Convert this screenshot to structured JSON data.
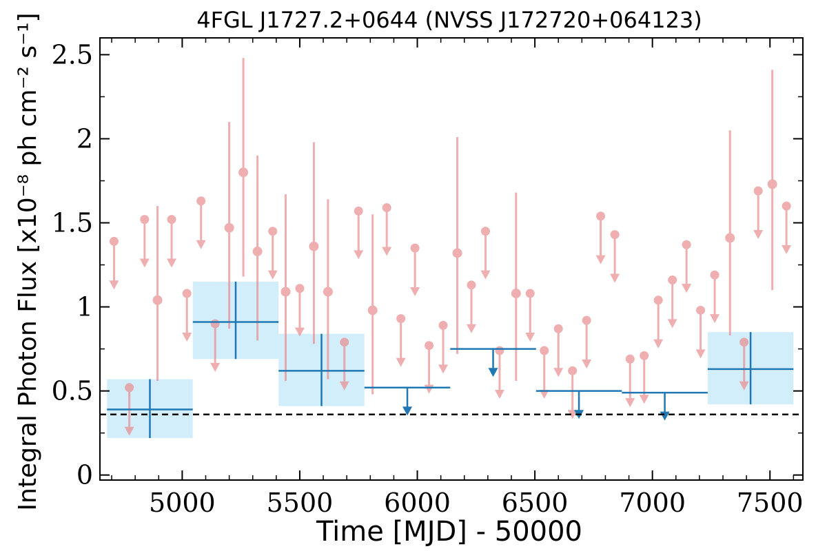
{
  "chart_data": {
    "type": "scatter",
    "title": "4FGL J1727.2+0644 (NVSS J172720+064123)",
    "xlabel": "Time [MJD] - 50000",
    "ylabel": "Integral Photon Flux [x10⁻⁸ ph cm⁻² s⁻¹]",
    "xlim": [
      4650,
      7640
    ],
    "ylim": [
      -0.03,
      2.6
    ],
    "x_ticks": [
      5000,
      5500,
      6000,
      6500,
      7000,
      7500
    ],
    "y_ticks": [
      0,
      0.5,
      1,
      1.5,
      2,
      2.5
    ],
    "x_tick_labels": [
      "5000",
      "5500",
      "6000",
      "6500",
      "7000",
      "7500"
    ],
    "y_tick_labels": [
      "0",
      "0.5",
      "1",
      "1.5",
      "2",
      "2.5"
    ],
    "grid": false,
    "reference_line": {
      "y": 0.36,
      "style": "dashed"
    },
    "colors": {
      "short_bin": "#e8888a",
      "long_bin": "#1f77b4",
      "long_bin_fill": "#d3eefb",
      "reference": "#000000"
    },
    "series": [
      {
        "bin_width_days": 60,
        "detections": [
          {
            "x": 4895,
            "y": 1.04,
            "err_low": 0.48,
            "err_high": 0.56
          },
          {
            "x": 5200,
            "y": 1.47,
            "err_low": 0.6,
            "err_high": 0.63
          },
          {
            "x": 5260,
            "y": 1.8,
            "err_low": 0.62,
            "err_high": 0.68
          },
          {
            "x": 5320,
            "y": 1.33,
            "err_low": 0.53,
            "err_high": 0.57
          },
          {
            "x": 5440,
            "y": 1.09,
            "err_low": 0.53,
            "err_high": 0.58
          },
          {
            "x": 5560,
            "y": 1.36,
            "err_low": 0.58,
            "err_high": 0.62
          },
          {
            "x": 5620,
            "y": 1.09,
            "err_low": 0.52,
            "err_high": 0.55
          },
          {
            "x": 5810,
            "y": 0.98,
            "err_low": 0.5,
            "err_high": 0.57
          },
          {
            "x": 6170,
            "y": 1.32,
            "err_low": 0.6,
            "err_high": 0.69
          },
          {
            "x": 6420,
            "y": 1.08,
            "err_low": 0.52,
            "err_high": 0.6
          },
          {
            "x": 7330,
            "y": 1.41,
            "err_low": 0.58,
            "err_high": 0.64
          },
          {
            "x": 7510,
            "y": 1.73,
            "err_low": 0.63,
            "err_high": 0.68
          }
        ],
        "upper_limits": [
          {
            "x": 4710,
            "y": 1.39
          },
          {
            "x": 4775,
            "y": 0.52
          },
          {
            "x": 4840,
            "y": 1.52
          },
          {
            "x": 4955,
            "y": 1.52
          },
          {
            "x": 5020,
            "y": 1.08
          },
          {
            "x": 5080,
            "y": 1.63
          },
          {
            "x": 5140,
            "y": 0.9
          },
          {
            "x": 5385,
            "y": 1.45
          },
          {
            "x": 5500,
            "y": 1.11
          },
          {
            "x": 5690,
            "y": 0.79
          },
          {
            "x": 5750,
            "y": 1.57
          },
          {
            "x": 5870,
            "y": 1.59
          },
          {
            "x": 5930,
            "y": 0.93
          },
          {
            "x": 5990,
            "y": 1.35
          },
          {
            "x": 6050,
            "y": 0.77
          },
          {
            "x": 6110,
            "y": 0.89
          },
          {
            "x": 6230,
            "y": 1.13
          },
          {
            "x": 6290,
            "y": 1.45
          },
          {
            "x": 6350,
            "y": 0.74
          },
          {
            "x": 6480,
            "y": 1.08
          },
          {
            "x": 6540,
            "y": 0.74
          },
          {
            "x": 6600,
            "y": 0.87
          },
          {
            "x": 6660,
            "y": 0.62
          },
          {
            "x": 6720,
            "y": 0.92
          },
          {
            "x": 6780,
            "y": 1.54
          },
          {
            "x": 6840,
            "y": 1.43
          },
          {
            "x": 6905,
            "y": 0.69
          },
          {
            "x": 6965,
            "y": 0.71
          },
          {
            "x": 7025,
            "y": 1.04
          },
          {
            "x": 7085,
            "y": 1.16
          },
          {
            "x": 7145,
            "y": 1.37
          },
          {
            "x": 7205,
            "y": 0.98
          },
          {
            "x": 7265,
            "y": 1.19
          },
          {
            "x": 7390,
            "y": 0.79
          },
          {
            "x": 7450,
            "y": 1.69
          },
          {
            "x": 7570,
            "y": 1.6
          }
        ]
      },
      {
        "bin_width_days": 365,
        "detections": [
          {
            "x0": 4680,
            "x1": 5045,
            "y": 0.39,
            "err_low": 0.17,
            "err_high": 0.18
          },
          {
            "x0": 5045,
            "x1": 5410,
            "y": 0.91,
            "err_low": 0.22,
            "err_high": 0.24
          },
          {
            "x0": 5410,
            "x1": 5775,
            "y": 0.62,
            "err_low": 0.21,
            "err_high": 0.22
          },
          {
            "x0": 7235,
            "x1": 7600,
            "y": 0.63,
            "err_low": 0.21,
            "err_high": 0.22
          }
        ],
        "upper_limits": [
          {
            "x0": 5775,
            "x1": 6140,
            "y": 0.52
          },
          {
            "x0": 6140,
            "x1": 6505,
            "y": 0.75
          },
          {
            "x0": 6505,
            "x1": 6870,
            "y": 0.5
          },
          {
            "x0": 6870,
            "x1": 7235,
            "y": 0.49
          }
        ]
      }
    ]
  }
}
